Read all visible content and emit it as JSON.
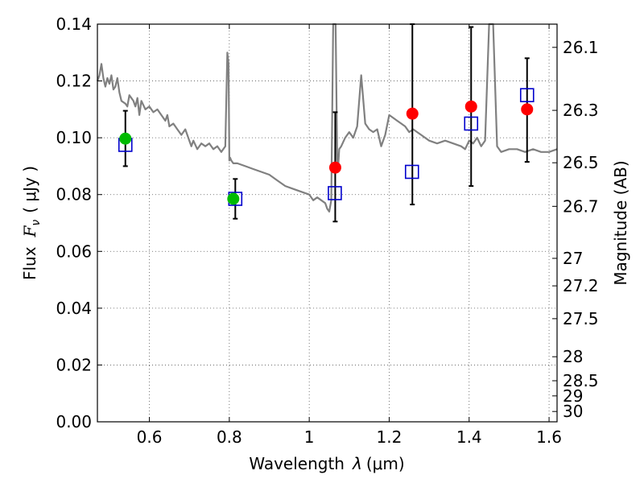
{
  "chart_data": {
    "type": "scatter",
    "title": "",
    "xlabel": "Wavelength  λ (μm)",
    "xlabel_parts": {
      "text": "Wavelength",
      "symbol": "λ",
      "unit": "(μm)"
    },
    "ylabel": "Flux  Fν  ( μJy )",
    "ylabel_parts": {
      "text": "Flux",
      "symbol": "F",
      "subscript": "ν",
      "unit": "( μJy )"
    },
    "y2label": "Magnitude (AB)",
    "xlim": [
      0.47,
      1.62
    ],
    "ylim": [
      0.0,
      0.14
    ],
    "grid": true,
    "x_ticks": [
      0.6,
      0.8,
      1.0,
      1.2,
      1.4,
      1.6
    ],
    "x_tick_labels": [
      "0.6",
      "0.8",
      "1",
      "1.2",
      "1.4",
      "1.6"
    ],
    "y_ticks": [
      0.0,
      0.02,
      0.04,
      0.06,
      0.08,
      0.1,
      0.12,
      0.14
    ],
    "y_tick_labels": [
      "0.00",
      "0.02",
      "0.04",
      "0.06",
      "0.08",
      "0.10",
      "0.12",
      "0.14"
    ],
    "mag_ticks": [
      {
        "mag": 26.1,
        "label": "26.1"
      },
      {
        "mag": 26.3,
        "label": "26.3"
      },
      {
        "mag": 26.5,
        "label": "26.5"
      },
      {
        "mag": 26.7,
        "label": "26.7"
      },
      {
        "mag": 27.0,
        "label": "27"
      },
      {
        "mag": 27.2,
        "label": "27.2"
      },
      {
        "mag": 27.5,
        "label": "27.5"
      },
      {
        "mag": 28.0,
        "label": "28"
      },
      {
        "mag": 28.5,
        "label": "28.5"
      },
      {
        "mag": 29.0,
        "label": "29"
      },
      {
        "mag": 30.0,
        "label": "30"
      }
    ],
    "colors": {
      "sed": "#808080",
      "observed_optical": "#00bb00",
      "observed_nir": "#ff0000",
      "model": "#0000cc",
      "errorbar": "#000000",
      "grid": "#555555"
    },
    "series": [
      {
        "name": "Model SED",
        "kind": "line",
        "x": [
          0.47,
          0.475,
          0.48,
          0.485,
          0.49,
          0.495,
          0.5,
          0.505,
          0.51,
          0.515,
          0.52,
          0.525,
          0.53,
          0.54,
          0.545,
          0.55,
          0.56,
          0.565,
          0.57,
          0.575,
          0.58,
          0.59,
          0.6,
          0.61,
          0.62,
          0.63,
          0.64,
          0.645,
          0.65,
          0.66,
          0.67,
          0.68,
          0.69,
          0.7,
          0.705,
          0.71,
          0.72,
          0.73,
          0.74,
          0.75,
          0.76,
          0.77,
          0.78,
          0.79,
          0.795,
          0.798,
          0.8,
          0.802,
          0.805,
          0.81,
          0.82,
          0.84,
          0.86,
          0.88,
          0.9,
          0.92,
          0.94,
          0.96,
          0.98,
          1.0,
          1.01,
          1.02,
          1.03,
          1.04,
          1.045,
          1.05,
          1.055,
          1.06,
          1.063,
          1.066,
          1.07,
          1.072,
          1.075,
          1.08,
          1.09,
          1.1,
          1.11,
          1.12,
          1.13,
          1.14,
          1.15,
          1.16,
          1.17,
          1.18,
          1.19,
          1.2,
          1.21,
          1.22,
          1.23,
          1.24,
          1.25,
          1.26,
          1.27,
          1.28,
          1.3,
          1.32,
          1.34,
          1.36,
          1.38,
          1.39,
          1.4,
          1.41,
          1.42,
          1.43,
          1.44,
          1.45,
          1.455,
          1.46,
          1.47,
          1.48,
          1.5,
          1.52,
          1.54,
          1.56,
          1.58,
          1.6,
          1.62
        ],
        "y": [
          0.12,
          0.122,
          0.126,
          0.121,
          0.118,
          0.121,
          0.119,
          0.122,
          0.117,
          0.118,
          0.121,
          0.116,
          0.113,
          0.112,
          0.111,
          0.115,
          0.113,
          0.111,
          0.114,
          0.108,
          0.113,
          0.11,
          0.111,
          0.109,
          0.11,
          0.108,
          0.106,
          0.108,
          0.104,
          0.105,
          0.103,
          0.101,
          0.103,
          0.099,
          0.097,
          0.099,
          0.096,
          0.098,
          0.097,
          0.098,
          0.096,
          0.097,
          0.095,
          0.097,
          0.13,
          0.126,
          0.092,
          0.093,
          0.092,
          0.091,
          0.091,
          0.09,
          0.089,
          0.088,
          0.087,
          0.085,
          0.083,
          0.082,
          0.081,
          0.08,
          0.078,
          0.079,
          0.078,
          0.077,
          0.075,
          0.074,
          0.078,
          0.14,
          0.14,
          0.14,
          0.092,
          0.089,
          0.096,
          0.097,
          0.1,
          0.102,
          0.1,
          0.104,
          0.122,
          0.105,
          0.103,
          0.102,
          0.103,
          0.097,
          0.101,
          0.108,
          0.107,
          0.106,
          0.105,
          0.104,
          0.102,
          0.103,
          0.102,
          0.101,
          0.099,
          0.098,
          0.099,
          0.098,
          0.097,
          0.096,
          0.099,
          0.098,
          0.1,
          0.097,
          0.099,
          0.14,
          0.14,
          0.14,
          0.097,
          0.095,
          0.096,
          0.096,
          0.095,
          0.096,
          0.095,
          0.095,
          0.096
        ]
      },
      {
        "name": "Observed optical",
        "kind": "points",
        "marker": "circle",
        "x": [
          0.54,
          0.81
        ],
        "y": [
          0.0997,
          0.0785
        ]
      },
      {
        "name": "Observed NIR",
        "kind": "points",
        "marker": "circle",
        "x": [
          1.065,
          1.258,
          1.405,
          1.545
        ],
        "y": [
          0.0895,
          0.1085,
          0.111,
          0.11
        ],
        "err_low": [
          0.0705,
          0.0765,
          0.083,
          0.0915
        ],
        "err_high": [
          0.109,
          0.141,
          0.139,
          0.128
        ]
      },
      {
        "name": "Model photometry",
        "kind": "points",
        "marker": "open-square",
        "x": [
          0.54,
          0.815,
          1.064,
          1.257,
          1.405,
          1.545
        ],
        "y": [
          0.0975,
          0.0785,
          0.0805,
          0.088,
          0.105,
          0.115
        ]
      },
      {
        "name": "Optical error bars",
        "kind": "errorbar",
        "x": [
          0.54,
          0.815
        ],
        "err_low": [
          0.09,
          0.0715
        ],
        "err_high": [
          0.1095,
          0.0855
        ]
      }
    ]
  }
}
